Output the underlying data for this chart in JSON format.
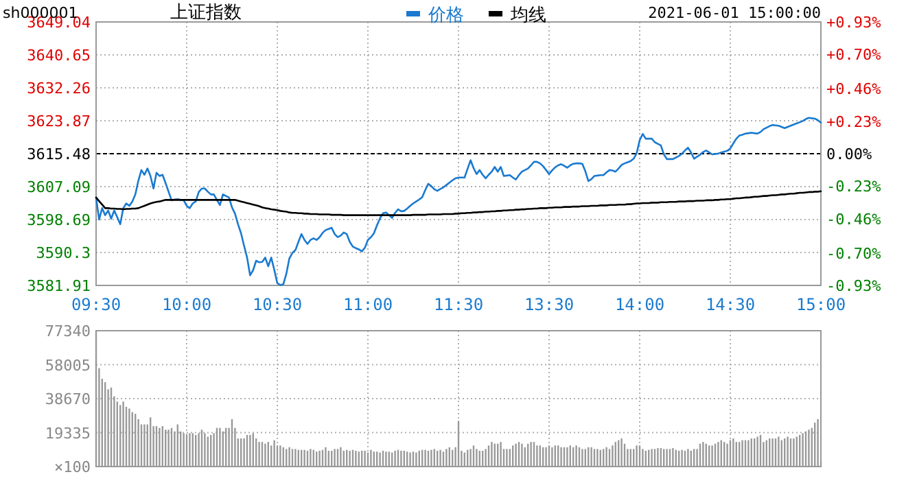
{
  "chart_data": [
    {
      "type": "line",
      "title": "上证指数",
      "annotations": [
        "sh000001",
        "2021-06-01 15:00:00"
      ],
      "legend": "top",
      "grid": true,
      "categories": [
        "09:30",
        null,
        null,
        null,
        null,
        null,
        null,
        null,
        null,
        null,
        null,
        null,
        null,
        null,
        null,
        null,
        null,
        null,
        null,
        null,
        null,
        null,
        null,
        null,
        null,
        null,
        null,
        null,
        null,
        null,
        "10:00",
        null,
        null,
        null,
        null,
        null,
        null,
        null,
        null,
        null,
        null,
        null,
        null,
        null,
        null,
        null,
        null,
        null,
        null,
        null,
        null,
        null,
        null,
        null,
        null,
        null,
        null,
        null,
        null,
        null,
        "10:30",
        null,
        null,
        null,
        null,
        null,
        null,
        null,
        null,
        null,
        null,
        null,
        null,
        null,
        null,
        null,
        null,
        null,
        null,
        null,
        null,
        null,
        null,
        null,
        null,
        null,
        null,
        null,
        null,
        null,
        "11:00",
        null,
        null,
        null,
        null,
        null,
        null,
        null,
        null,
        null,
        null,
        null,
        null,
        null,
        null,
        null,
        null,
        null,
        null,
        null,
        null,
        null,
        null,
        null,
        null,
        null,
        null,
        null,
        null,
        null,
        "11:30",
        null,
        null,
        null,
        null,
        null,
        null,
        null,
        null,
        null,
        null,
        null,
        null,
        null,
        null,
        null,
        null,
        null,
        null,
        null,
        null,
        null,
        null,
        null,
        null,
        null,
        null,
        null,
        null,
        null,
        "13:30",
        null,
        null,
        null,
        null,
        null,
        null,
        null,
        null,
        null,
        null,
        null,
        null,
        null,
        null,
        null,
        null,
        null,
        null,
        null,
        null,
        null,
        null,
        null,
        null,
        null,
        null,
        null,
        null,
        null,
        "14:00",
        null,
        null,
        null,
        null,
        null,
        null,
        null,
        null,
        null,
        null,
        null,
        null,
        null,
        null,
        null,
        null,
        null,
        null,
        null,
        null,
        null,
        null,
        null,
        null,
        null,
        null,
        null,
        null,
        null,
        "14:30",
        null,
        null,
        null,
        null,
        null,
        null,
        null,
        null,
        null,
        null,
        null,
        null,
        null,
        null,
        null,
        null,
        null,
        null,
        null,
        null,
        null,
        null,
        null,
        null,
        null,
        null,
        null,
        null,
        null,
        "15:00"
      ],
      "ylim": [
        3581.91,
        3649.04
      ],
      "yticks": [
        3581.91,
        3590.3,
        3598.69,
        3607.09,
        3615.48,
        3623.87,
        3632.26,
        3640.65,
        3649.04
      ],
      "y2lim": [
        -0.93,
        0.93
      ],
      "y2ticks": [
        {
          "value": -0.93,
          "label": "-0.93%"
        },
        {
          "value": -0.7,
          "label": "-0.70%"
        },
        {
          "value": -0.46,
          "label": "-0.46%"
        },
        {
          "value": -0.23,
          "label": "-0.23%"
        },
        {
          "value": 0,
          "label": "0.00%"
        },
        {
          "value": 0.23,
          "label": "+0.23%"
        },
        {
          "value": 0.46,
          "label": "+0.46%"
        },
        {
          "value": 0.7,
          "label": "+0.70%"
        },
        {
          "value": 0.93,
          "label": "+0.93%"
        }
      ],
      "ref_lines": [
        {
          "axis": "y",
          "value": 3615.48,
          "color": "#000000",
          "line_style": "dashed"
        }
      ],
      "series": [
        {
          "name": "价格",
          "color": "#1a7ad0",
          "values": [
            3604.3,
            3598.7,
            3601.6,
            3599.8,
            3601.0,
            3598.9,
            3601.0,
            3599.3,
            3597.5,
            3601.6,
            3602.8,
            3602.2,
            3603.3,
            3605.1,
            3608.6,
            3611.3,
            3610.1,
            3611.7,
            3609.8,
            3606.6,
            3610.6,
            3609.8,
            3610.1,
            3608.0,
            3605.8,
            3603.6,
            3603.8,
            3603.9,
            3603.7,
            3603.6,
            3602.2,
            3601.6,
            3602.8,
            3603.3,
            3605.7,
            3606.6,
            3606.6,
            3605.8,
            3605.1,
            3605.1,
            3603.7,
            3602.4,
            3605.1,
            3604.7,
            3604.3,
            3601.8,
            3600.2,
            3597.5,
            3595.2,
            3592.0,
            3589.0,
            3584.5,
            3585.8,
            3588.2,
            3587.8,
            3587.9,
            3589.0,
            3586.8,
            3589.0,
            3585.9,
            3582.5,
            3582.0,
            3582.2,
            3584.9,
            3588.8,
            3590.2,
            3590.9,
            3593.0,
            3595.0,
            3593.5,
            3592.5,
            3593.5,
            3593.9,
            3593.5,
            3594.2,
            3595.3,
            3596.0,
            3596.3,
            3596.6,
            3595.0,
            3594.2,
            3594.6,
            3595.4,
            3595.0,
            3593.0,
            3591.8,
            3591.4,
            3591.1,
            3590.6,
            3591.5,
            3593.5,
            3594.2,
            3595.2,
            3597.2,
            3599.0,
            3600.3,
            3600.5,
            3599.8,
            3599.1,
            3600.4,
            3601.3,
            3600.8,
            3600.9,
            3601.5,
            3602.2,
            3602.8,
            3603.3,
            3603.8,
            3604.4,
            3606.2,
            3607.8,
            3607.2,
            3606.4,
            3606.0,
            3606.5,
            3606.9,
            3607.5,
            3608.1,
            3608.7,
            3609.2,
            3609.4,
            3609.4,
            3609.4,
            3611.6,
            3613.8,
            3611.8,
            3610.3,
            3611.3,
            3610.1,
            3609.2,
            3610.1,
            3610.9,
            3612.1,
            3610.9,
            3612.1,
            3609.8,
            3609.9,
            3610.0,
            3609.4,
            3608.9,
            3610.0,
            3610.9,
            3611.3,
            3611.7,
            3612.5,
            3613.4,
            3613.4,
            3613.0,
            3612.3,
            3611.3,
            3610.3,
            3611.2,
            3612.0,
            3612.5,
            3612.8,
            3612.4,
            3611.9,
            3612.5,
            3612.9,
            3613.0,
            3613.0,
            3612.9,
            3611.0,
            3608.5,
            3609.0,
            3609.8,
            3609.9,
            3610.0,
            3610.0,
            3610.7,
            3611.3,
            3611.2,
            3610.9,
            3611.7,
            3612.6,
            3613.0,
            3613.3,
            3613.6,
            3614.2,
            3615.6,
            3618.9,
            3620.5,
            3619.3,
            3619.3,
            3619.3,
            3618.4,
            3618.0,
            3617.6,
            3615.3,
            3614.1,
            3614.1,
            3614.1,
            3614.5,
            3614.9,
            3615.5,
            3616.3,
            3617.0,
            3615.8,
            3614.2,
            3614.7,
            3615.2,
            3615.9,
            3616.3,
            3615.8,
            3615.3,
            3615.4,
            3615.5,
            3615.8,
            3616.0,
            3616.2,
            3616.8,
            3618.1,
            3619.3,
            3620.1,
            3620.3,
            3620.6,
            3620.7,
            3620.8,
            3620.7,
            3620.6,
            3621.0,
            3621.7,
            3622.1,
            3622.5,
            3622.8,
            3622.7,
            3622.6,
            3622.3,
            3622.0,
            3622.3,
            3622.6,
            3622.9,
            3623.2,
            3623.5,
            3623.8,
            3624.3,
            3624.6,
            3624.5,
            3624.4,
            3624.0,
            3623.4
          ]
        },
        {
          "name": "均线",
          "color": "#000000",
          "values": [
            3604.3,
            3603.4,
            3602.5,
            3601.6,
            3601.6,
            3601.5,
            3601.5,
            3601.4,
            3601.4,
            3601.3,
            3601.4,
            3601.4,
            3601.5,
            3601.5,
            3601.6,
            3601.9,
            3602.2,
            3602.5,
            3602.8,
            3603.0,
            3603.2,
            3603.3,
            3603.5,
            3603.7,
            3603.7,
            3603.7,
            3603.7,
            3603.7,
            3603.7,
            3603.7,
            3603.7,
            3603.7,
            3603.7,
            3603.7,
            3603.7,
            3603.7,
            3603.7,
            3603.7,
            3603.7,
            3603.7,
            3603.7,
            3603.7,
            3603.7,
            3603.7,
            3603.7,
            3603.7,
            3603.7,
            3603.5,
            3603.3,
            3603.1,
            3602.9,
            3602.7,
            3602.5,
            3602.3,
            3602.1,
            3601.8,
            3601.6,
            3601.5,
            3601.3,
            3601.2,
            3601.1,
            3600.9,
            3600.8,
            3600.7,
            3600.5,
            3600.4,
            3600.4,
            3600.3,
            3600.3,
            3600.2,
            3600.2,
            3600.1,
            3600.1,
            3600.1,
            3600.0,
            3600.0,
            3600.0,
            3600.0,
            3599.9,
            3599.9,
            3599.9,
            3599.9,
            3599.8,
            3599.8,
            3599.8,
            3599.8,
            3599.8,
            3599.8,
            3599.8,
            3599.8,
            3599.8,
            3599.8,
            3599.8,
            3599.8,
            3599.8,
            3599.8,
            3599.8,
            3599.8,
            3599.8,
            3599.8,
            3599.8,
            3599.8,
            3599.8,
            3599.8,
            3599.8,
            3599.9,
            3599.9,
            3599.9,
            3599.9,
            3599.9,
            3600.0,
            3600.0,
            3600.0,
            3600.0,
            3600.0,
            3600.1,
            3600.1,
            3600.1,
            3600.1,
            3600.2,
            3600.2,
            3600.3,
            3600.3,
            3600.4,
            3600.4,
            3600.5,
            3600.5,
            3600.6,
            3600.6,
            3600.7,
            3600.7,
            3600.8,
            3600.8,
            3600.9,
            3600.9,
            3601.0,
            3601.0,
            3601.1,
            3601.1,
            3601.2,
            3601.2,
            3601.3,
            3601.3,
            3601.4,
            3601.4,
            3601.5,
            3601.5,
            3601.6,
            3601.6,
            3601.6,
            3601.7,
            3601.7,
            3601.8,
            3601.8,
            3601.8,
            3601.9,
            3601.9,
            3601.9,
            3602.0,
            3602.0,
            3602.0,
            3602.1,
            3602.1,
            3602.1,
            3602.2,
            3602.2,
            3602.2,
            3602.3,
            3602.3,
            3602.3,
            3602.4,
            3602.4,
            3602.4,
            3602.5,
            3602.5,
            3602.5,
            3602.6,
            3602.6,
            3602.7,
            3602.8,
            3602.8,
            3602.9,
            3602.9,
            3602.9,
            3603.0,
            3603.0,
            3603.0,
            3603.1,
            3603.1,
            3603.1,
            3603.2,
            3603.2,
            3603.2,
            3603.3,
            3603.3,
            3603.3,
            3603.4,
            3603.4,
            3603.4,
            3603.5,
            3603.5,
            3603.5,
            3603.6,
            3603.6,
            3603.6,
            3603.7,
            3603.7,
            3603.8,
            3603.8,
            3603.9,
            3603.9,
            3604.0,
            3604.1,
            3604.1,
            3604.2,
            3604.3,
            3604.3,
            3604.4,
            3604.5,
            3604.5,
            3604.6,
            3604.7,
            3604.7,
            3604.8,
            3604.9,
            3604.9,
            3605.0,
            3605.1,
            3605.1,
            3605.2,
            3605.3,
            3605.3,
            3605.4,
            3605.5,
            3605.5,
            3605.6,
            3605.7,
            3605.7,
            3605.8,
            3605.8,
            3605.9
          ]
        }
      ]
    },
    {
      "type": "bar",
      "color": "#999999",
      "grid": true,
      "tick_labels": "y",
      "ylabel": "×100",
      "ylim": [
        0,
        77340
      ],
      "yticks": [
        19335,
        38670,
        58005,
        77340
      ],
      "categories": [
        null,
        null,
        null,
        null,
        null,
        null,
        null,
        null,
        null,
        null,
        null,
        null,
        null,
        null,
        null,
        null,
        null,
        null,
        null,
        null,
        null,
        null,
        null,
        null,
        null,
        null,
        null,
        null,
        null,
        null,
        null,
        null,
        null,
        null,
        null,
        null,
        null,
        null,
        null,
        null,
        null,
        null,
        null,
        null,
        null,
        null,
        null,
        null,
        null,
        null,
        null,
        null,
        null,
        null,
        null,
        null,
        null,
        null,
        null,
        null,
        null,
        null,
        null,
        null,
        null,
        null,
        null,
        null,
        null,
        null,
        null,
        null,
        null,
        null,
        null,
        null,
        null,
        null,
        null,
        null,
        null,
        null,
        null,
        null,
        null,
        null,
        null,
        null,
        null,
        null,
        null,
        null,
        null,
        null,
        null,
        null,
        null,
        null,
        null,
        null,
        null,
        null,
        null,
        null,
        null,
        null,
        null,
        null,
        null,
        null,
        null,
        null,
        null,
        null,
        null,
        null,
        null,
        null,
        null,
        null,
        null,
        null,
        null,
        null,
        null,
        null,
        null,
        null,
        null,
        null,
        null,
        null,
        null,
        null,
        null,
        null,
        null,
        null,
        null,
        null,
        null,
        null,
        null,
        null,
        null,
        null,
        null,
        null,
        null,
        null,
        null,
        null,
        null,
        null,
        null,
        null,
        null,
        null,
        null,
        null,
        null,
        null,
        null,
        null,
        null,
        null,
        null,
        null,
        null,
        null,
        null,
        null,
        null,
        null,
        null,
        null,
        null,
        null,
        null,
        null,
        null,
        null,
        null,
        null,
        null,
        null,
        null,
        null,
        null,
        null,
        null,
        null,
        null,
        null,
        null,
        null,
        null,
        null,
        null,
        null,
        null,
        null,
        null,
        null,
        null,
        null,
        null,
        null,
        null,
        null,
        null,
        null,
        null,
        null,
        null,
        null,
        null,
        null,
        null,
        null,
        null,
        null,
        null,
        null,
        null,
        null,
        null,
        null,
        null,
        null,
        null,
        null,
        null,
        null,
        null,
        null,
        null,
        null,
        null,
        null,
        null
      ],
      "values": [
        77000,
        56000,
        50000,
        48000,
        44000,
        45000,
        40000,
        37000,
        35000,
        37000,
        34000,
        33000,
        31000,
        30000,
        27000,
        24000,
        24000,
        24000,
        28000,
        23000,
        23000,
        22000,
        23000,
        21000,
        21000,
        22000,
        20000,
        24000,
        20000,
        19000,
        18000,
        19000,
        19000,
        18000,
        19000,
        21000,
        19000,
        17000,
        18000,
        19000,
        22000,
        22000,
        20000,
        22000,
        22000,
        27000,
        22000,
        16000,
        16000,
        16000,
        18000,
        18000,
        19000,
        16000,
        14000,
        14000,
        13000,
        14000,
        12000,
        15000,
        12000,
        12000,
        11000,
        10000,
        11000,
        10000,
        10000,
        9500,
        9500,
        9500,
        9000,
        10000,
        9500,
        8500,
        9000,
        9500,
        11000,
        9000,
        9000,
        10000,
        10000,
        11000,
        9000,
        9500,
        9000,
        9500,
        9000,
        8500,
        9000,
        9000,
        8000,
        9500,
        8500,
        8500,
        8000,
        9000,
        8500,
        8500,
        8000,
        9000,
        9500,
        9000,
        9000,
        8500,
        8000,
        8500,
        8000,
        9000,
        9500,
        9500,
        9000,
        9500,
        10000,
        9000,
        9500,
        8500,
        10000,
        11000,
        9500,
        11000,
        26000,
        9000,
        8000,
        9500,
        10000,
        12000,
        10000,
        9000,
        9000,
        10000,
        12000,
        14000,
        13000,
        13000,
        14000,
        10000,
        10000,
        10000,
        12000,
        13000,
        14000,
        13000,
        11000,
        13000,
        14000,
        14000,
        12000,
        12000,
        11000,
        11000,
        12000,
        11000,
        12000,
        12000,
        11000,
        11000,
        11000,
        12000,
        11000,
        12000,
        11000,
        10000,
        10000,
        11000,
        11000,
        10000,
        10000,
        9500,
        10000,
        11000,
        10000,
        12000,
        14000,
        15000,
        16000,
        13000,
        10000,
        10000,
        10000,
        12000,
        12000,
        10000,
        9000,
        9500,
        10000,
        10000,
        10500,
        10500,
        10000,
        10000,
        10000,
        10500,
        9500,
        9000,
        9500,
        9000,
        10000,
        9000,
        10000,
        10000,
        13000,
        14000,
        13000,
        12000,
        12000,
        13000,
        14000,
        15000,
        14000,
        13000,
        15000,
        16000,
        14000,
        14000,
        15000,
        15000,
        15000,
        16000,
        16000,
        17000,
        18000,
        14000,
        15000,
        16000,
        16000,
        16000,
        17000,
        15000,
        16000,
        17000,
        16000,
        16000,
        17000,
        18000,
        19000,
        20000,
        21000,
        22000,
        25000,
        27000,
        3000
      ]
    }
  ]
}
